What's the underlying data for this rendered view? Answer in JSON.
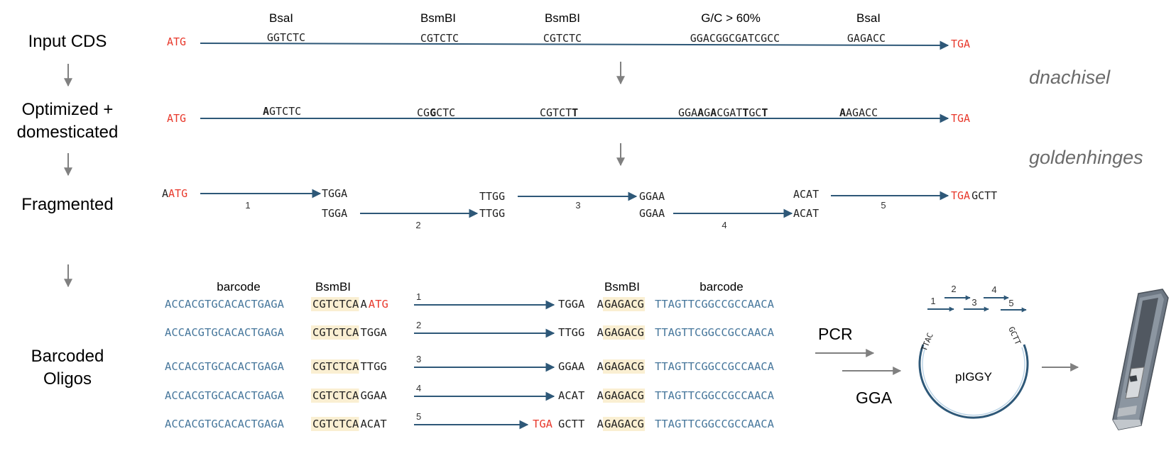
{
  "colors": {
    "arrow_blue": "#2e5878",
    "red": "#e8392c",
    "barcode_blue": "#47779c",
    "highlight": "#faefd2",
    "gray": "#808080",
    "text": "#222222"
  },
  "rows": {
    "input": "Input CDS",
    "optimized_1": "Optimized +",
    "optimized_2": "domesticated",
    "fragmented": "Fragmented",
    "barcoded_1": "Barcoded",
    "barcoded_2": "Oligos"
  },
  "tools": {
    "t1": "dnachisel",
    "t2": "goldenhinges"
  },
  "sites": {
    "bsai": "BsaI",
    "bsmbi": "BsmBI",
    "gc": "G/C > 60%",
    "barcode": "barcode"
  },
  "codons": {
    "start": "ATG",
    "stop": "TGA"
  },
  "input_seqs": {
    "s1": "GGTCTC",
    "s2": "CGTCTC",
    "s3": "CGTCTC",
    "s4": "GGACGGCGATCGCC",
    "s5": "GAGACC"
  },
  "optimized_seqs": {
    "s1a": "A",
    "s1b": "GTCTC",
    "s2a": "CG",
    "s2b": "G",
    "s2c": "CTC",
    "s3a": "CGTCT",
    "s3b": "T",
    "s4a": "GGA",
    "s4b": "A",
    "s4c": "G",
    "s4d": "A",
    "s4e": "CGAT",
    "s4f": "T",
    "s4g": "GC",
    "s4h": "T",
    "s5a": "A",
    "s5b": "AGACC"
  },
  "fragments": {
    "a_prefix": "A",
    "oh1": "TGGA",
    "oh2": "TTGG",
    "oh3": "GGAA",
    "oh4": "ACAT",
    "gctt": "GCTT",
    "n1": "1",
    "n2": "2",
    "n3": "3",
    "n4": "4",
    "n5": "5"
  },
  "oligos": {
    "barcode_fwd": "ACCACGTGCACACTGAGA",
    "bsmbi_fwd": "CGTCTCA",
    "spacer": "A",
    "bsmbi_rev": "GAGACG",
    "barcode_rev": "TTAGTTCGGCCGCCAACA",
    "right_pad": "A",
    "rows": [
      {
        "num": "1",
        "left_tail": "ATG",
        "right_oh": "TGGA"
      },
      {
        "num": "2",
        "left_tail": "TGGA",
        "right_oh": "TTGG"
      },
      {
        "num": "3",
        "left_tail": "TTGG",
        "right_oh": "GGAA"
      },
      {
        "num": "4",
        "left_tail": "GGAA",
        "right_oh": "ACAT"
      },
      {
        "num": "5",
        "left_tail": "ACAT",
        "right_oh": "GCTT",
        "stop": "TGA"
      }
    ]
  },
  "assembly": {
    "pcr": "PCR",
    "gga": "GGA",
    "plasmid": "pIGGY",
    "oh_left": "TTAC",
    "oh_right": "GCTT",
    "n1": "1",
    "n2": "2",
    "n3": "3",
    "n4": "4",
    "n5": "5"
  },
  "icons": {
    "flow_arrow": "down-arrow-icon",
    "sequencer": "nanopore-sequencer-icon"
  }
}
